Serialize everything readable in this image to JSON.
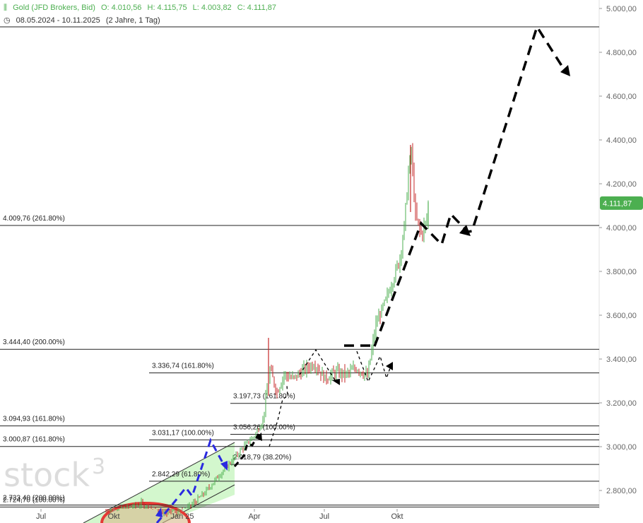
{
  "header": {
    "instrument": "Gold (JFD Brokers, Bid)",
    "open": "O: 4.010,56",
    "high": "H: 4.115,75",
    "low": "L: 4.003,82",
    "close": "C: 4.111,87",
    "range": "08.05.2024 - 10.11.2025",
    "period": "(2 Jahre, 1 Tag)"
  },
  "logo_text": "stock",
  "logo_super": "3",
  "colors": {
    "up": "#4caf50",
    "down": "#c62828",
    "price_tag": "#4caf50",
    "channel_fill": "#c8f5c0",
    "projection": "#000000",
    "blue_projection": "#2a2ae0",
    "ellipse": "#e53935"
  },
  "chart_data": {
    "type": "candlestick",
    "y_axis_ticks": [
      "5.000,00",
      "4.800,00",
      "4.600,00",
      "4.400,00",
      "4.200,00",
      "4.000,00",
      "3.800,00",
      "3.600,00",
      "3.400,00",
      "3.200,00",
      "3.000,00",
      "2.800,00"
    ],
    "y_tick_values": [
      5000,
      4800,
      4600,
      4400,
      4200,
      4000,
      3800,
      3600,
      3400,
      3200,
      3000,
      2800
    ],
    "ylim": [
      2710,
      5020
    ],
    "x_axis_ticks": [
      "Jul",
      "Okt",
      "Jan 25",
      "Apr",
      "Jul",
      "Okt"
    ],
    "last_price": 4111.87,
    "last_price_label": "4.111,87",
    "levels": [
      {
        "label": "4.009,76 (261.80%)",
        "value": 4009.76
      },
      {
        "label": "3.444,40 (200.00%)",
        "value": 3444.4
      },
      {
        "label": "3.336,74 (161.80%)",
        "value": 3336.74
      },
      {
        "label": "3.197,73 (161.80%)",
        "value": 3197.73
      },
      {
        "label": "3.094,93 (161.80%)",
        "value": 3094.93
      },
      {
        "label": "3.056,26 (100.00%)",
        "value": 3056.26
      },
      {
        "label": "3.031,17 (100.00%)",
        "value": 3031.17
      },
      {
        "label": "3.000,87 (161.80%)",
        "value": 3000.87
      },
      {
        "label": "2.918,79 (38.20%)",
        "value": 2918.79
      },
      {
        "label": "2.842,29 (61.80%)",
        "value": 2842.29
      },
      {
        "label": "2.733,40 (200.00%)",
        "value": 2733.4
      },
      {
        "label": "2.724,70 (100.00%)",
        "value": 2724.7
      }
    ],
    "top_line_value": 4916
  }
}
